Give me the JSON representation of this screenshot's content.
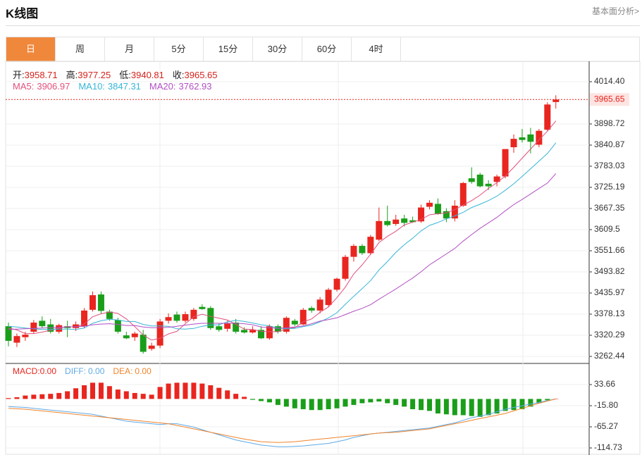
{
  "header": {
    "title": "K线图",
    "link": "基本面分析>"
  },
  "tabs": [
    "日",
    "周",
    "月",
    "5分",
    "15分",
    "30分",
    "60分",
    "4时"
  ],
  "active_tab": 0,
  "chart_data": [
    {
      "type": "candlestick",
      "info": [
        {
          "label": "开:",
          "value": 3958.71
        },
        {
          "label": "高:",
          "value": 3977.25
        },
        {
          "label": "低:",
          "value": 3940.81
        },
        {
          "label": "收:",
          "value": 3965.65
        }
      ],
      "up_color": "#e8261f",
      "down_color": "#1a9e1a",
      "open": [
        3345,
        3300,
        3315,
        3330,
        3360,
        3350,
        3330,
        3345,
        3340,
        3345,
        3390,
        3432,
        3385,
        3362,
        3320,
        3315,
        3322,
        3283,
        3292,
        3360,
        3377,
        3360,
        3365,
        3398,
        3395,
        3345,
        3338,
        3355,
        3335,
        3328,
        3335,
        3312,
        3345,
        3330,
        3360,
        3350,
        3395,
        3388,
        3403,
        3445,
        3475,
        3535,
        3565,
        3545,
        3582,
        3633,
        3625,
        3640,
        3635,
        3632,
        3672,
        3680,
        3660,
        3640,
        3675,
        3750,
        3760,
        3735,
        3740,
        3755,
        3835,
        3862,
        3870,
        3842,
        3883,
        3958.71
      ],
      "high": [
        3355,
        3325,
        3330,
        3362,
        3372,
        3365,
        3352,
        3360,
        3358,
        3395,
        3440,
        3440,
        3390,
        3368,
        3330,
        3330,
        3335,
        3300,
        3365,
        3380,
        3385,
        3385,
        3395,
        3405,
        3400,
        3352,
        3360,
        3365,
        3342,
        3345,
        3345,
        3350,
        3350,
        3372,
        3365,
        3395,
        3400,
        3425,
        3450,
        3478,
        3540,
        3570,
        3570,
        3595,
        3670,
        3675,
        3650,
        3650,
        3645,
        3678,
        3690,
        3695,
        3668,
        3690,
        3740,
        3780,
        3765,
        3745,
        3760,
        3830,
        3870,
        3885,
        3888,
        3885,
        3958,
        3977.25
      ],
      "low": [
        3290,
        3288,
        3305,
        3325,
        3340,
        3325,
        3325,
        3315,
        3332,
        3340,
        3385,
        3380,
        3360,
        3325,
        3310,
        3305,
        3270,
        3278,
        3285,
        3352,
        3355,
        3355,
        3360,
        3390,
        3335,
        3330,
        3330,
        3325,
        3325,
        3325,
        3310,
        3308,
        3325,
        3325,
        3345,
        3348,
        3382,
        3380,
        3398,
        3440,
        3470,
        3522,
        3540,
        3540,
        3578,
        3618,
        3620,
        3618,
        3628,
        3628,
        3665,
        3650,
        3630,
        3632,
        3672,
        3735,
        3725,
        3718,
        3728,
        3750,
        3820,
        3848,
        3818,
        3835,
        3880,
        3940.81
      ],
      "close": [
        3305,
        3318,
        3322,
        3355,
        3345,
        3330,
        3348,
        3340,
        3350,
        3388,
        3430,
        3387,
        3365,
        3330,
        3312,
        3325,
        3275,
        3292,
        3358,
        3370,
        3360,
        3378,
        3390,
        3392,
        3340,
        3335,
        3352,
        3330,
        3328,
        3335,
        3312,
        3345,
        3330,
        3368,
        3350,
        3390,
        3388,
        3418,
        3445,
        3475,
        3535,
        3565,
        3545,
        3590,
        3633,
        3622,
        3637,
        3628,
        3630,
        3670,
        3683,
        3652,
        3640,
        3675,
        3737,
        3740,
        3728,
        3728,
        3755,
        3830,
        3858,
        3855,
        3850,
        3880,
        3952,
        3965.65
      ],
      "series": [
        {
          "label": "MA5:",
          "last": 3906.97,
          "color": "#e2507c",
          "values": [
            3340,
            3335,
            3325,
            3325,
            3329,
            3334,
            3340,
            3344,
            3343,
            3351,
            3371,
            3379,
            3384,
            3380,
            3365,
            3344,
            3321,
            3307,
            3312,
            3324,
            3331,
            3352,
            3371,
            3378,
            3372,
            3367,
            3362,
            3350,
            3337,
            3336,
            3331,
            3330,
            3330,
            3338,
            3341,
            3357,
            3365,
            3383,
            3398,
            3423,
            3452,
            3488,
            3513,
            3542,
            3574,
            3591,
            3605,
            3622,
            3630,
            3637,
            3650,
            3653,
            3655,
            3664,
            3677,
            3689,
            3704,
            3722,
            3738,
            3756,
            3780,
            3805,
            3830,
            3855,
            3879,
            3906.97
          ]
        },
        {
          "label": "MA10:",
          "last": 3847.31,
          "color": "#37b5d6",
          "values": [
            3345,
            3343,
            3340,
            3338,
            3336,
            3336,
            3337,
            3337,
            3336,
            3340,
            3353,
            3360,
            3364,
            3362,
            3358,
            3358,
            3350,
            3346,
            3346,
            3345,
            3338,
            3337,
            3339,
            3345,
            3348,
            3349,
            3357,
            3361,
            3358,
            3354,
            3349,
            3346,
            3340,
            3338,
            3339,
            3344,
            3348,
            3357,
            3368,
            3382,
            3405,
            3427,
            3448,
            3470,
            3499,
            3522,
            3547,
            3568,
            3586,
            3606,
            3621,
            3629,
            3639,
            3647,
            3657,
            3670,
            3679,
            3689,
            3701,
            3717,
            3735,
            3755,
            3776,
            3797,
            3818,
            3847.31
          ]
        },
        {
          "label": "MA20:",
          "last": 3762.93,
          "color": "#b24fc4",
          "values": [
            3336,
            3337,
            3338,
            3339,
            3340,
            3341,
            3342,
            3343,
            3344,
            3345,
            3349,
            3351,
            3352,
            3350,
            3347,
            3347,
            3343,
            3341,
            3341,
            3342,
            3345,
            3348,
            3351,
            3353,
            3353,
            3353,
            3353,
            3353,
            3352,
            3349,
            3343,
            3341,
            3339,
            3341,
            3343,
            3346,
            3352,
            3359,
            3363,
            3368,
            3377,
            3386,
            3394,
            3404,
            3419,
            3433,
            3447,
            3462,
            3477,
            3494,
            3513,
            3528,
            3543,
            3558,
            3578,
            3596,
            3613,
            3628,
            3643,
            3661,
            3678,
            3692,
            3707,
            3722,
            3737,
            3762.93
          ]
        }
      ],
      "last_price": 3965.65,
      "ylim": [
        3243.16,
        4068.38
      ],
      "yticks": [
        {
          "value": 4014.4,
          "label": "4014.40"
        },
        3898.72,
        3840.87,
        3783.03,
        3725.19,
        3667.35,
        3609.5,
        3551.66,
        3493.82,
        3435.97,
        3378.13,
        3320.29,
        3262.44
      ]
    },
    {
      "type": "macd",
      "histogram": {
        "label": "MACD:",
        "value_label": "0.00",
        "color": "#e8261f",
        "down_color": "#1a9e1a",
        "values": [
          2,
          4,
          8,
          10,
          11,
          12,
          14,
          18,
          25,
          32,
          38,
          38,
          30,
          22,
          18,
          14,
          12,
          10,
          28,
          36,
          38,
          38,
          38,
          36,
          32,
          26,
          20,
          12,
          5,
          -2,
          -5,
          -8,
          -14,
          -18,
          -22,
          -24,
          -26,
          -26,
          -24,
          -22,
          -18,
          -14,
          -10,
          -8,
          -6,
          -10,
          -14,
          -18,
          -24,
          -26,
          -28,
          -34,
          -36,
          -38,
          -38,
          -40,
          -42,
          -38,
          -34,
          -28,
          -26,
          -24,
          -18,
          -10,
          -3,
          0
        ]
      },
      "series": [
        {
          "label": "DIFF:",
          "value_label": "0.00",
          "color": "#5fa9e6",
          "values": [
            -18,
            -19,
            -20,
            -22,
            -24,
            -26,
            -28,
            -30,
            -32,
            -34,
            -36,
            -40,
            -44,
            -48,
            -52,
            -54,
            -56,
            -58,
            -60,
            -58,
            -58,
            -62,
            -66,
            -72,
            -78,
            -84,
            -90,
            -96,
            -100,
            -104,
            -108,
            -110,
            -112,
            -112,
            -111,
            -110,
            -108,
            -106,
            -104,
            -100,
            -96,
            -90,
            -86,
            -82,
            -80,
            -78,
            -76,
            -74,
            -72,
            -70,
            -68,
            -64,
            -60,
            -56,
            -50,
            -44,
            -40,
            -36,
            -30,
            -24,
            -20,
            -16,
            -12,
            -8,
            -4,
            0
          ]
        },
        {
          "label": "DEA:",
          "value_label": "0.00",
          "color": "#f0842c",
          "values": [
            -22,
            -23,
            -24,
            -26,
            -28,
            -30,
            -32,
            -34,
            -36,
            -38,
            -40,
            -42,
            -44,
            -46,
            -48,
            -50,
            -52,
            -54,
            -56,
            -58,
            -62,
            -66,
            -70,
            -74,
            -78,
            -82,
            -86,
            -90,
            -94,
            -97,
            -100,
            -101,
            -102,
            -101,
            -100,
            -98,
            -96,
            -94,
            -92,
            -90,
            -88,
            -86,
            -84,
            -82,
            -80,
            -79,
            -78,
            -76,
            -74,
            -72,
            -70,
            -66,
            -62,
            -58,
            -54,
            -50,
            -46,
            -42,
            -38,
            -34,
            -28,
            -22,
            -16,
            -10,
            -5,
            0
          ]
        }
      ],
      "ylim": [
        -131.22,
        83.12
      ],
      "yticks": [
        33.66,
        {
          "value": -15.8,
          "label": "-15.80"
        },
        -65.27,
        -114.73
      ]
    }
  ]
}
